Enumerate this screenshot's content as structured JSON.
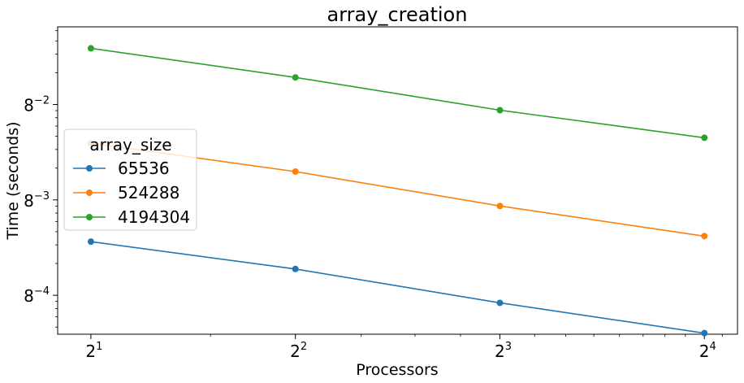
{
  "chart_data": {
    "type": "line",
    "title": "array_creation",
    "xlabel": "Processors",
    "ylabel": "Time (seconds)",
    "x_scale": "log2",
    "y_scale": "log8",
    "x_ticks": [
      {
        "base": "2",
        "exp": "1",
        "value": 2
      },
      {
        "base": "2",
        "exp": "2",
        "value": 4
      },
      {
        "base": "2",
        "exp": "3",
        "value": 8
      },
      {
        "base": "2",
        "exp": "4",
        "value": 16
      }
    ],
    "y_ticks": [
      {
        "base": "8",
        "exp": "−2",
        "value": 0.015625
      },
      {
        "base": "8",
        "exp": "−3",
        "value": 0.001953125
      },
      {
        "base": "8",
        "exp": "−4",
        "value": 0.000244140625
      }
    ],
    "x": [
      2,
      4,
      8,
      16
    ],
    "xlim": [
      1.787,
      17.9
    ],
    "ylim": [
      0.0001045,
      0.08495
    ],
    "grid": false,
    "legend": {
      "title": "array_size",
      "placement": "center-left"
    },
    "series": [
      {
        "name": "65536",
        "color": "#1f77b4",
        "values": [
          0.000786,
          0.000433,
          0.000207,
          0.000107
        ]
      },
      {
        "name": "524288",
        "color": "#ff7f0e",
        "values": [
          0.00672,
          0.00362,
          0.00171,
          0.000887
        ]
      },
      {
        "name": "4194304",
        "color": "#2ca02c",
        "values": [
          0.0532,
          0.0282,
          0.0138,
          0.00757
        ]
      }
    ]
  }
}
